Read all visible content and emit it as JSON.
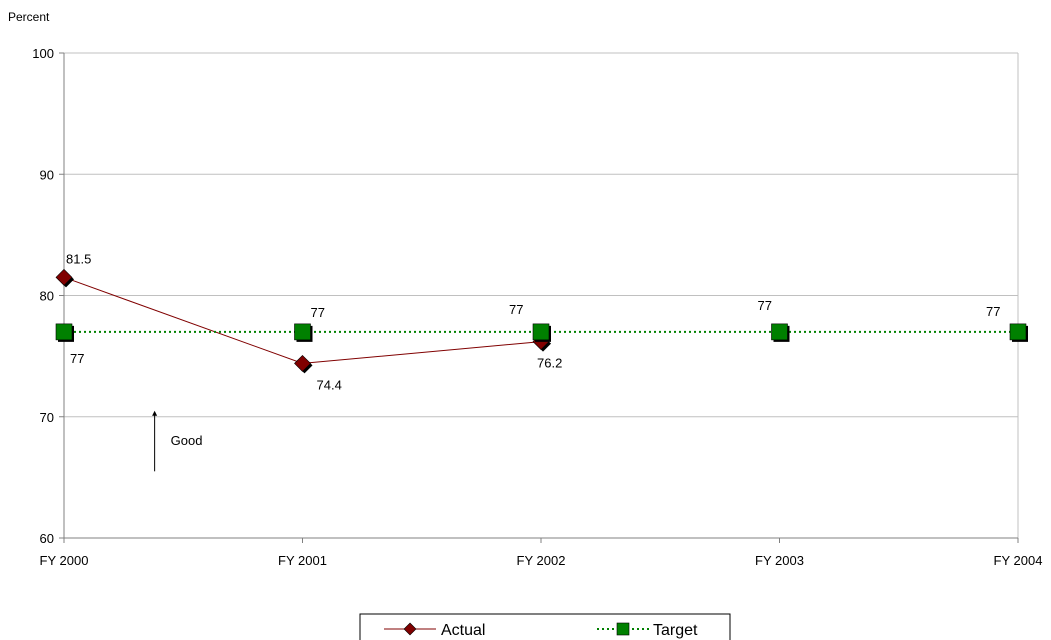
{
  "chart_data": {
    "type": "line",
    "ylabel": "Percent",
    "categories": [
      "FY 2000",
      "FY 2001",
      "FY 2002",
      "FY 2003",
      "FY 2004"
    ],
    "ylim": [
      60,
      100
    ],
    "yticks": [
      "60",
      "70",
      "80",
      "90",
      "100"
    ],
    "grid": true,
    "legend_position": "bottom-center",
    "series": [
      {
        "name": "Actual",
        "values": [
          81.5,
          74.4,
          76.2,
          null,
          null
        ],
        "labels": [
          "81.5",
          "74.4",
          "76.2",
          "",
          ""
        ],
        "color": "#800000",
        "marker": "diamond",
        "line": "solid"
      },
      {
        "name": "Target",
        "values": [
          77,
          77,
          77,
          77,
          77
        ],
        "labels": [
          "77",
          "77",
          "77",
          "77",
          "77"
        ],
        "color": "#008000",
        "marker": "square",
        "line": "dotted"
      }
    ],
    "annotation": {
      "text": "Good",
      "category_pos": 0.38,
      "y_from": 65.5,
      "y_to": 70.5
    }
  }
}
